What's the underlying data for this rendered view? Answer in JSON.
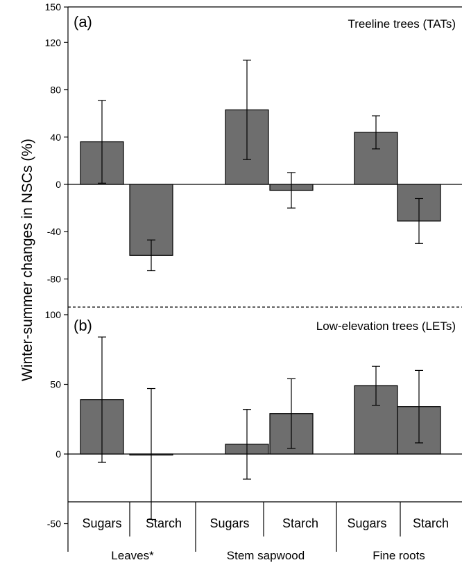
{
  "chart_data": {
    "type": "bar",
    "ylabel": "Winter-summer changes in NSCs (%)",
    "categories": [
      "Sugars",
      "Starch",
      "Sugars",
      "Starch",
      "Sugars",
      "Starch"
    ],
    "groups": [
      "Leaves*",
      "Stem sapwood",
      "Fine roots"
    ],
    "bar_color": "#6e6e6e",
    "panels": [
      {
        "letter": "(a)",
        "title": "Treeline trees (TATs)",
        "ylim": [
          -100,
          150
        ],
        "yticks": [
          -80,
          -40,
          0,
          40,
          80,
          120,
          150
        ],
        "values": [
          36,
          -60,
          63,
          -5,
          44,
          -31
        ],
        "errors": [
          35,
          13,
          42,
          15,
          14,
          19
        ]
      },
      {
        "letter": "(b)",
        "title": "Low-elevation trees (LETs)",
        "ylim": [
          -50,
          150
        ],
        "yticks": [
          -50,
          0,
          50,
          100
        ],
        "values": [
          39,
          0,
          7,
          29,
          49,
          34
        ],
        "errors": [
          45,
          47,
          25,
          25,
          14,
          26
        ]
      }
    ]
  }
}
